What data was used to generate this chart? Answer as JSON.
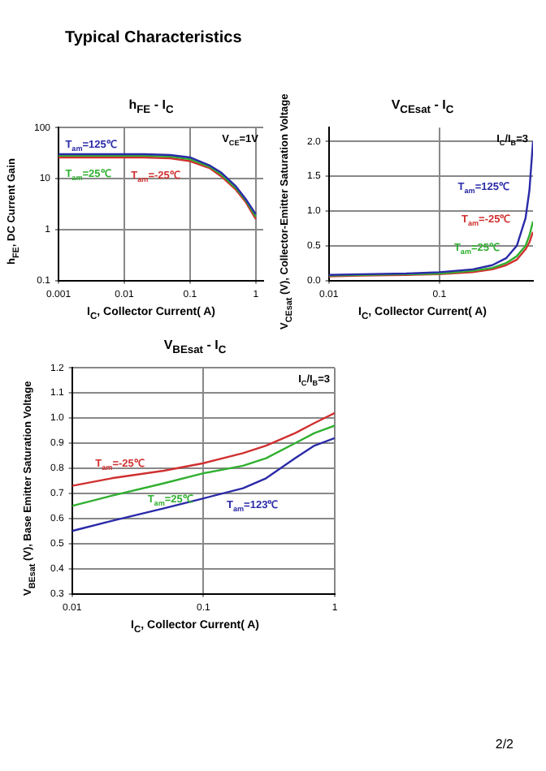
{
  "chart_data": [
    {
      "type": "other",
      "title": "Typical Characteristics",
      "annotations": [
        "2/2"
      ]
    },
    {
      "type": "line",
      "title": "h$_{FE}$ - I$_{C}$",
      "xlabel": "I$_{C}$, Collector Current( A)",
      "ylabel": "h$_{FE}$, DC Current Gain",
      "log": "xy",
      "xlim": [
        0.001,
        1.3
      ],
      "xticks": [
        0.001,
        0.01,
        0.1,
        1
      ],
      "ylim": [
        0.1,
        100
      ],
      "yticks": [
        0.1,
        1,
        10,
        100
      ],
      "grid": true,
      "legend": false,
      "marker": "none",
      "annotations": [
        "V$_{CE}$=1V"
      ],
      "x": [
        0.001,
        0.002,
        0.005,
        0.01,
        0.02,
        0.05,
        0.1,
        0.2,
        0.3,
        0.5,
        0.7,
        1
      ],
      "series": [
        {
          "name": "T$_{am}$=125℃",
          "color": "#2a2aa8",
          "values": [
            30,
            30,
            30,
            30,
            30,
            29,
            26,
            18,
            13,
            7,
            4,
            2
          ]
        },
        {
          "name": "T$_{am}$=25℃",
          "color": "#30b030",
          "values": [
            28,
            28,
            28,
            28,
            28,
            27,
            24,
            17,
            12,
            6.5,
            3.8,
            1.8
          ]
        },
        {
          "name": "T$_{am}$=-25℃",
          "color": "#d03030",
          "values": [
            26,
            26,
            26,
            26,
            26,
            25,
            22,
            16,
            11,
            6,
            3.5,
            1.6
          ]
        }
      ]
    },
    {
      "type": "line",
      "title": "V$_{CEsat}$ - I$_{C}$",
      "xlabel": "I$_{C}$, Collector Current( A)",
      "ylabel": "V$_{CEsat}$ (V), Collector-Emitter Saturation Voltage",
      "log": "x",
      "xlim": [
        0.01,
        0.7
      ],
      "xticks": [
        0.01,
        0.1
      ],
      "ylim": [
        0,
        2.2
      ],
      "yticks": [
        {
          "value": 0,
          "label": "0.0"
        },
        0.5,
        {
          "value": 1,
          "label": "1.0"
        },
        1.5,
        {
          "value": 2,
          "label": "2.0"
        }
      ],
      "grid": true,
      "legend": false,
      "marker": "none",
      "annotations": [
        "I$_{C}$/I$_{B}$=3"
      ],
      "x": [
        0.01,
        0.02,
        0.05,
        0.1,
        0.2,
        0.3,
        0.4,
        0.5,
        0.6,
        0.65,
        0.7
      ],
      "series": [
        {
          "name": "T$_{am}$=125℃",
          "color": "#2a2aa8",
          "values": [
            0.08,
            0.09,
            0.1,
            0.12,
            0.16,
            0.22,
            0.32,
            0.5,
            0.9,
            1.3,
            2.0
          ]
        },
        {
          "name": "T$_{am}$=25℃",
          "color": "#30b030",
          "values": [
            0.07,
            0.08,
            0.09,
            0.1,
            0.14,
            0.18,
            0.25,
            0.35,
            0.5,
            0.65,
            0.85
          ]
        },
        {
          "name": "T$_{am}$=-25℃",
          "color": "#d03030",
          "values": [
            0.06,
            0.07,
            0.08,
            0.09,
            0.12,
            0.16,
            0.22,
            0.3,
            0.45,
            0.55,
            0.7
          ]
        }
      ]
    },
    {
      "type": "line",
      "title": "V$_{BEsat}$ - I$_{C}$",
      "xlabel": "I$_{C}$, Collector Current( A)",
      "ylabel": "V$_{BEsat}$ (V), Base Emitter Saturation Voltage",
      "log": "x",
      "xlim": [
        0.01,
        1
      ],
      "xticks": [
        0.01,
        0.1,
        1
      ],
      "ylim": [
        0.3,
        1.2
      ],
      "yticks": [
        0.3,
        0.4,
        0.5,
        0.6,
        0.7,
        0.8,
        0.9,
        {
          "value": 1,
          "label": "1.0"
        },
        1.1,
        1.2
      ],
      "grid": true,
      "legend": false,
      "marker": "none",
      "annotations": [
        "I$_{C}$/I$_{B}$=3"
      ],
      "x": [
        0.01,
        0.02,
        0.05,
        0.1,
        0.2,
        0.3,
        0.5,
        0.7,
        1
      ],
      "series": [
        {
          "name": "T$_{am}$=-25℃",
          "color": "#d03030",
          "values": [
            0.73,
            0.76,
            0.79,
            0.82,
            0.86,
            0.89,
            0.94,
            0.98,
            1.02
          ]
        },
        {
          "name": "T$_{am}$=25℃",
          "color": "#30b030",
          "values": [
            0.65,
            0.69,
            0.74,
            0.78,
            0.81,
            0.84,
            0.9,
            0.94,
            0.97
          ]
        },
        {
          "name": "T$_{am}$=123℃",
          "color": "#2a2aa8",
          "values": [
            0.55,
            0.59,
            0.64,
            0.68,
            0.72,
            0.76,
            0.84,
            0.89,
            0.92
          ]
        }
      ]
    }
  ]
}
